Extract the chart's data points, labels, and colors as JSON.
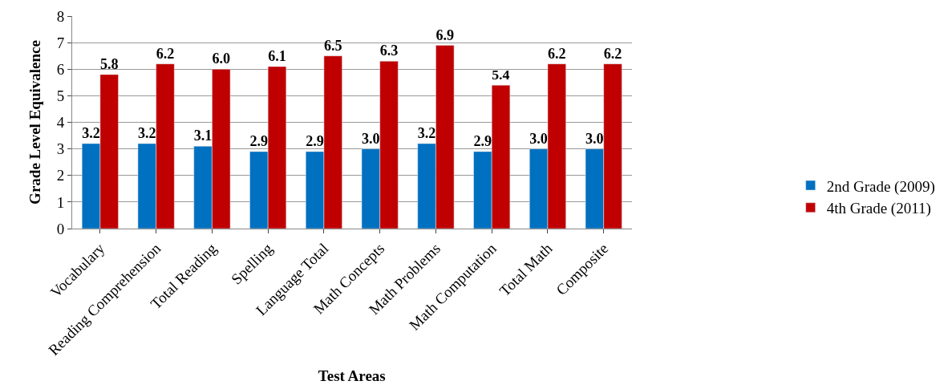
{
  "chart_data": {
    "type": "bar",
    "xlabel": "Test Areas",
    "ylabel": "Grade Level Equivalence",
    "categories": [
      "Vocabulary",
      "Reading Comprehension",
      "Total Reading",
      "Spelling",
      "Language Total",
      "Math Concepts",
      "Math Problems",
      "Math Computation",
      "Total Math",
      "Composite"
    ],
    "series": [
      {
        "name": "2nd Grade (2009)",
        "color": "#0070c0",
        "values": [
          3.2,
          3.2,
          3.1,
          2.9,
          2.9,
          3.0,
          3.2,
          2.9,
          3.0,
          3.0
        ],
        "value_labels": [
          "3.2",
          "3.2",
          "3.1",
          "2.9",
          "2.9",
          "3.0",
          "3.2",
          "2.9",
          "3.0",
          "3.0"
        ]
      },
      {
        "name": "4th Grade (2011)",
        "color": "#c00000",
        "values": [
          5.8,
          6.2,
          6.0,
          6.1,
          6.5,
          6.3,
          6.9,
          5.4,
          6.2,
          6.2
        ],
        "value_labels": [
          "5.8",
          "6.2",
          "6.0",
          "6.1",
          "6.5",
          "6.3",
          "6.9",
          "5.4",
          "6.2",
          "6.2"
        ]
      }
    ],
    "ylim": [
      0,
      8
    ],
    "yticks": [
      0,
      1,
      2,
      3,
      4,
      5,
      6,
      7,
      8
    ],
    "grid": "y",
    "legend": "right"
  }
}
